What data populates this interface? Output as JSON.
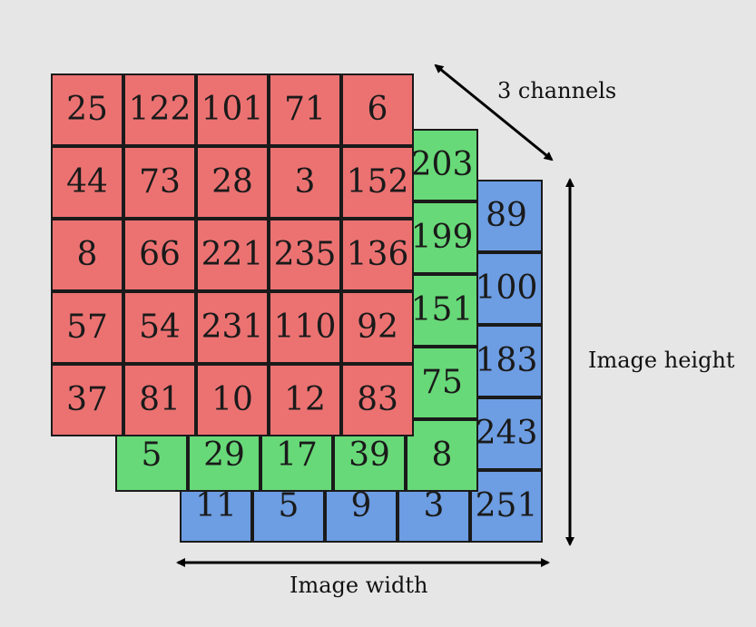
{
  "labels": {
    "channels": "3 channels",
    "height": "Image height",
    "width": "Image width"
  },
  "colors": {
    "red_channel": "#ec7272",
    "green_channel": "#68d978",
    "blue_channel": "#6d9de2",
    "background": "#e6e6e6"
  },
  "channels": {
    "red": {
      "rows": [
        [
          "25",
          "122",
          "101",
          "71",
          "6"
        ],
        [
          "44",
          "73",
          "28",
          "3",
          "152"
        ],
        [
          "8",
          "66",
          "221",
          "235",
          "136"
        ],
        [
          "57",
          "54",
          "231",
          "110",
          "92"
        ],
        [
          "37",
          "81",
          "10",
          "12",
          "83"
        ]
      ]
    },
    "green": {
      "right_column": [
        "203",
        "199",
        "151",
        "75"
      ],
      "bottom_row": [
        "5",
        "29",
        "17",
        "39",
        "8"
      ]
    },
    "blue": {
      "right_column": [
        "89",
        "100",
        "183",
        "243"
      ],
      "bottom_row": [
        "11",
        "5",
        "9",
        "3",
        "251"
      ]
    }
  }
}
